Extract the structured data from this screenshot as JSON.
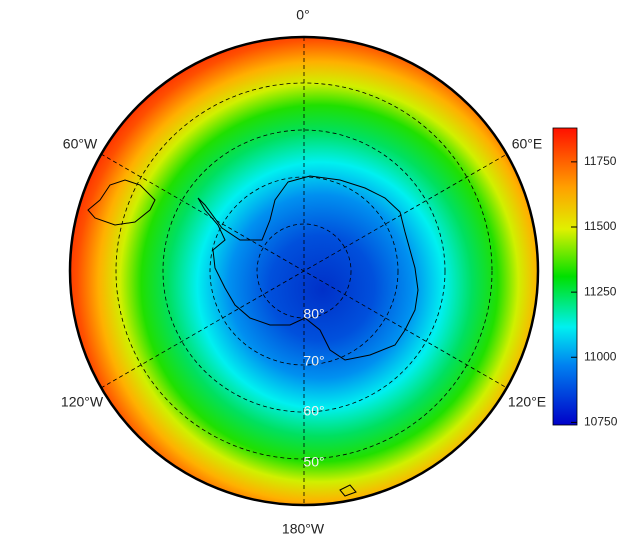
{
  "map": {
    "longitude_labels": [
      "0°",
      "60°E",
      "120°E",
      "180°W",
      "120°W",
      "60°W"
    ],
    "latitude_labels": [
      "80°",
      "70°",
      "60°",
      "50°"
    ]
  },
  "colorbar": {
    "ylim": [
      10740,
      11880
    ],
    "yticks": [
      10750,
      11000,
      11250,
      11500,
      11750
    ]
  }
}
